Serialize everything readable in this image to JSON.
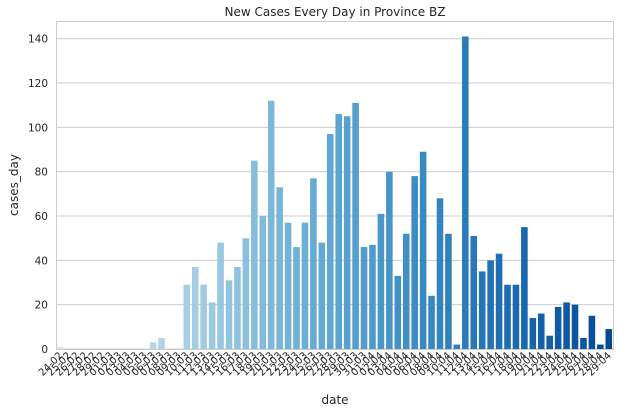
{
  "chart_data": {
    "type": "bar",
    "title": "New Cases Every Day in Province BZ",
    "xlabel": "date",
    "ylabel": "cases_day",
    "ylim": [
      0,
      148
    ],
    "yticks": [
      0,
      20,
      40,
      60,
      80,
      100,
      120,
      140
    ],
    "grid": true,
    "legend": "none",
    "palette": "Blues (light to dark)",
    "categories": [
      "24-02",
      "25-02",
      "26-02",
      "27-02",
      "28-02",
      "29-02",
      "01-03",
      "02-03",
      "03-03",
      "04-03",
      "05-03",
      "06-03",
      "07-03",
      "08-03",
      "09-03",
      "10-03",
      "11-03",
      "12-03",
      "13-03",
      "14-03",
      "15-03",
      "16-03",
      "17-03",
      "18-03",
      "19-03",
      "20-03",
      "21-03",
      "22-03",
      "23-03",
      "24-03",
      "25-03",
      "26-03",
      "27-03",
      "28-03",
      "29-03",
      "30-03",
      "31-03",
      "01-04",
      "02-04",
      "03-04",
      "04-04",
      "05-04",
      "06-04",
      "07-04",
      "08-04",
      "09-04",
      "10-04",
      "11-04",
      "12-04",
      "13-04",
      "14-04",
      "15-04",
      "16-04",
      "17-04",
      "18-04",
      "19-04",
      "20-04",
      "21-04",
      "22-04",
      "23-04",
      "24-04",
      "25-04",
      "26-04",
      "27-04",
      "28-04",
      "29-04"
    ],
    "values": [
      1,
      0,
      0,
      0,
      0,
      0,
      0,
      0,
      0,
      0,
      0,
      3,
      5,
      0,
      0,
      29,
      37,
      29,
      21,
      48,
      31,
      37,
      50,
      85,
      60,
      112,
      73,
      57,
      46,
      57,
      77,
      48,
      97,
      106,
      105,
      111,
      46,
      47,
      61,
      80,
      33,
      52,
      78,
      89,
      24,
      68,
      52,
      2,
      141,
      51,
      35,
      40,
      43,
      29,
      29,
      55,
      14,
      16,
      6,
      19,
      21,
      20,
      5,
      15,
      2,
      9
    ]
  }
}
